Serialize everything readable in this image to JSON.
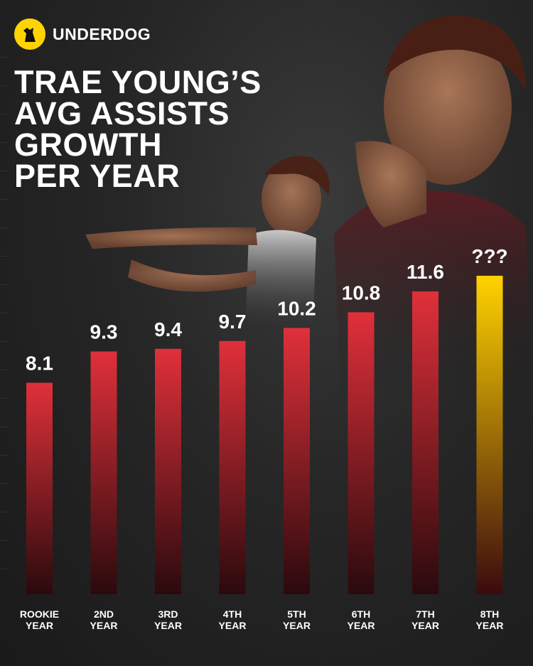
{
  "brand": {
    "name": "UNDERDOG",
    "logo_color": "#ffd400"
  },
  "title_lines": [
    "TRAE YOUNG’S",
    "AVG ASSISTS",
    "GROWTH",
    "PER YEAR"
  ],
  "colors": {
    "background": "#262626",
    "bar_red_top": "#e0303a",
    "bar_red_bottom": "#2a0a0d",
    "bar_gold_top": "#ffd200",
    "bar_gold_bottom": "#3a0a0f"
  },
  "chart_data": {
    "type": "bar",
    "title": "TRAE YOUNG’S AVG ASSISTS GROWTH PER YEAR",
    "categories": [
      [
        "ROOKIE",
        "YEAR"
      ],
      [
        "2ND",
        "YEAR"
      ],
      [
        "3RD",
        "YEAR"
      ],
      [
        "4TH",
        "YEAR"
      ],
      [
        "5TH",
        "YEAR"
      ],
      [
        "6TH",
        "YEAR"
      ],
      [
        "7TH",
        "YEAR"
      ],
      [
        "8TH",
        "YEAR"
      ]
    ],
    "values": [
      8.1,
      9.3,
      9.4,
      9.7,
      10.2,
      10.8,
      11.6,
      null
    ],
    "value_labels": [
      "8.1",
      "9.3",
      "9.4",
      "9.7",
      "10.2",
      "10.8",
      "11.6",
      "???"
    ],
    "highlight_index": 7,
    "grid": false,
    "legend": "none"
  }
}
